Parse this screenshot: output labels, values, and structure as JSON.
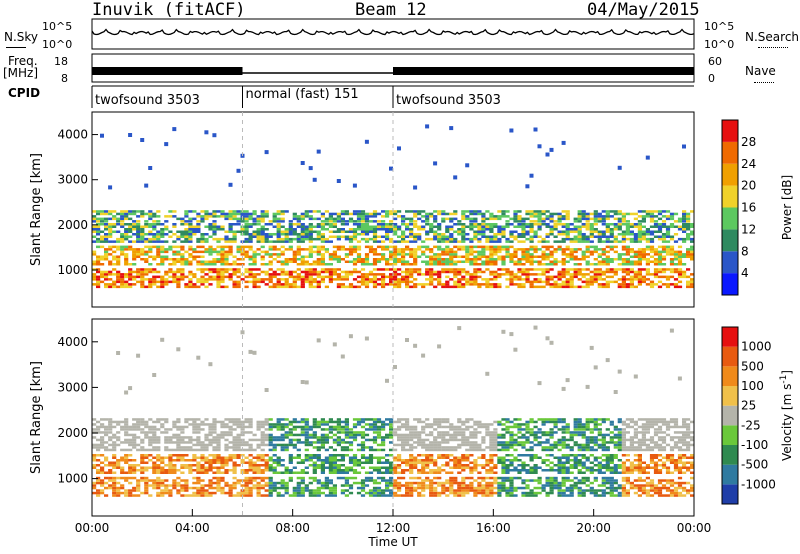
{
  "header": {
    "station": "Inuvik (fitACF)",
    "beam": "Beam 12",
    "date": "04/May/2015"
  },
  "sky_panel": {
    "left_label": "N.Sky",
    "right_label": "N.Search",
    "left_ticks": [
      "10^5",
      "10^0"
    ],
    "right_ticks": [
      "10^5",
      "10^0"
    ]
  },
  "freq_panel": {
    "left_label_top": "Freq.",
    "left_label_unit": "[MHz]",
    "right_label": "Nave",
    "left_ticks": [
      "18",
      "8"
    ],
    "right_ticks": [
      "60",
      "0"
    ]
  },
  "cpid_panel": {
    "label": "CPID",
    "segments": [
      {
        "name": "twofsound 3503",
        "start_hour": 0,
        "end_hour": 6
      },
      {
        "name": "normal (fast) 151",
        "start_hour": 6,
        "end_hour": 12
      },
      {
        "name": "twofsound 3503",
        "start_hour": 12,
        "end_hour": 24
      }
    ]
  },
  "chart_data": [
    {
      "type": "heatmap",
      "quantity": "Power",
      "ylabel": "Slant Range [km]",
      "ylim": [
        180,
        4500
      ],
      "yticks": [
        "1000",
        "2000",
        "3000",
        "4000"
      ],
      "xlim_hours": [
        0,
        24
      ],
      "colorbar": {
        "label": "Power [dB]",
        "ticks": [
          "4",
          "8",
          "12",
          "16",
          "20",
          "24",
          "28"
        ],
        "colors": [
          "#0a18ff",
          "#2a56c8",
          "#2f8a60",
          "#5cc860",
          "#f0d22a",
          "#f0a000",
          "#f06a00",
          "#e61010"
        ]
      }
    },
    {
      "type": "heatmap",
      "quantity": "Velocity",
      "ylabel": "Slant Range [km]",
      "ylim": [
        180,
        4500
      ],
      "yticks": [
        "1000",
        "2000",
        "3000",
        "4000"
      ],
      "xlim_hours": [
        0,
        24
      ],
      "xlabel": "Time UT",
      "xticks": [
        "00:00",
        "04:00",
        "08:00",
        "12:00",
        "16:00",
        "20:00",
        "00:00"
      ],
      "colorbar": {
        "label": "Velocity [m s",
        "label_sup": "-1",
        "label_end": "]",
        "ticks": [
          "1000",
          "500",
          "100",
          "25",
          "-25",
          "-100",
          "-500",
          "-1000"
        ],
        "colors": [
          "#1f3ea8",
          "#2f7aa0",
          "#2f8a50",
          "#6ac83a",
          "#b4b4aa",
          "#f0c04a",
          "#f08a1a",
          "#e85a10",
          "#e61010"
        ]
      }
    }
  ]
}
